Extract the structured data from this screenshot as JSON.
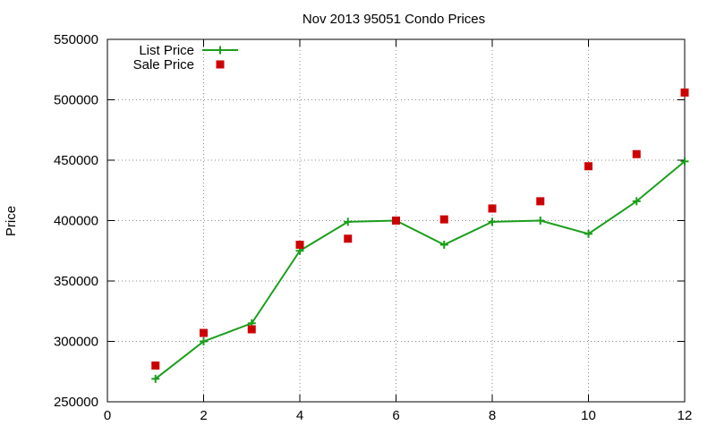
{
  "chart_data": {
    "type": "line",
    "title": "Nov 2013 95051 Condo Prices",
    "xlabel": "",
    "ylabel": "Price",
    "xlim": [
      0,
      12
    ],
    "ylim": [
      250000,
      550000
    ],
    "x_ticks": [
      0,
      2,
      4,
      6,
      8,
      10,
      12
    ],
    "y_ticks": [
      250000,
      300000,
      350000,
      400000,
      450000,
      500000,
      550000
    ],
    "grid": true,
    "legend_position": "top-left",
    "series": [
      {
        "name": "List Price",
        "style": "line-plus",
        "color": "#1a9e1a",
        "x": [
          1,
          2,
          3,
          4,
          5,
          6,
          7,
          8,
          9,
          10,
          11,
          12
        ],
        "y": [
          269000,
          299999,
          315000,
          375000,
          399000,
          400000,
          380000,
          399000,
          400000,
          389000,
          416000,
          449000
        ]
      },
      {
        "name": "Sale Price",
        "style": "square-points",
        "color": "#cc0000",
        "x": [
          1,
          2,
          3,
          4,
          5,
          6,
          7,
          8,
          9,
          10,
          11,
          12
        ],
        "y": [
          280000,
          307000,
          310000,
          380000,
          385000,
          400000,
          401000,
          410000,
          416000,
          445000,
          455000,
          506000
        ]
      }
    ]
  }
}
